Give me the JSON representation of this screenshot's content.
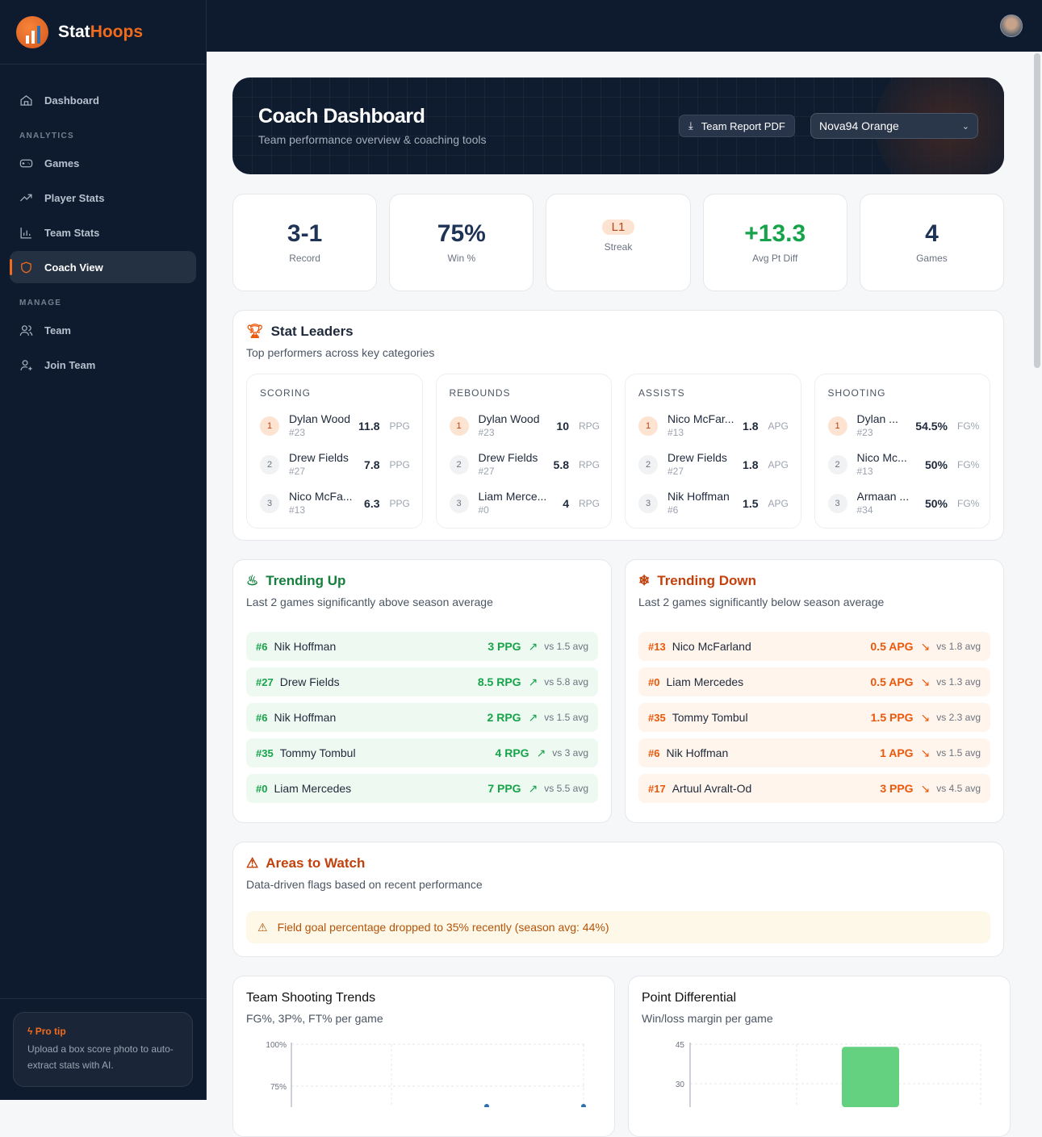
{
  "brand": {
    "name_a": "Stat",
    "name_b": "Hoops"
  },
  "sidebar": {
    "dashboard": "Dashboard",
    "analytics": "ANALYTICS",
    "items": [
      {
        "label": "Games",
        "icon": "gamepad-icon"
      },
      {
        "label": "Player Stats",
        "icon": "trending-up-icon"
      },
      {
        "label": "Team Stats",
        "icon": "bar-chart-icon"
      },
      {
        "label": "Coach View",
        "icon": "shield-icon"
      }
    ],
    "manage": "MANAGE",
    "manage_items": [
      {
        "label": "Team"
      },
      {
        "label": "Join Team"
      }
    ],
    "tip_title": "Pro tip",
    "tip_body": "Upload a box score photo to auto-extract stats with AI."
  },
  "hero": {
    "title": "Coach Dashboard",
    "subtitle": "Team performance overview & coaching tools",
    "pdf": "Team Report PDF",
    "team": "Nova94 Orange"
  },
  "kpis": [
    {
      "value": "3-1",
      "label": "Record"
    },
    {
      "value": "75%",
      "label": "Win %"
    },
    {
      "value": "L1",
      "label": "Streak"
    },
    {
      "value": "+13.3",
      "label": "Avg Pt Diff"
    },
    {
      "value": "4",
      "label": "Games"
    }
  ],
  "leaders": {
    "title": "Stat Leaders",
    "subtitle": "Top performers across key categories",
    "cats": [
      {
        "name": "SCORING",
        "unit": "PPG",
        "rows": [
          {
            "n": "Dylan Wood",
            "no": "#23",
            "v": "11.8"
          },
          {
            "n": "Drew Fields",
            "no": "#27",
            "v": "7.8"
          },
          {
            "n": "Nico McFa...",
            "no": "#13",
            "v": "6.3"
          }
        ]
      },
      {
        "name": "REBOUNDS",
        "unit": "RPG",
        "rows": [
          {
            "n": "Dylan Wood",
            "no": "#23",
            "v": "10"
          },
          {
            "n": "Drew Fields",
            "no": "#27",
            "v": "5.8"
          },
          {
            "n": "Liam Merce...",
            "no": "#0",
            "v": "4"
          }
        ]
      },
      {
        "name": "ASSISTS",
        "unit": "APG",
        "rows": [
          {
            "n": "Nico McFar...",
            "no": "#13",
            "v": "1.8"
          },
          {
            "n": "Drew Fields",
            "no": "#27",
            "v": "1.8"
          },
          {
            "n": "Nik Hoffman",
            "no": "#6",
            "v": "1.5"
          }
        ]
      },
      {
        "name": "SHOOTING",
        "unit": "FG%",
        "rows": [
          {
            "n": "Dylan ...",
            "no": "#23",
            "v": "54.5%"
          },
          {
            "n": "Nico Mc...",
            "no": "#13",
            "v": "50%"
          },
          {
            "n": "Armaan ...",
            "no": "#34",
            "v": "50%"
          }
        ]
      }
    ]
  },
  "trending_up": {
    "title": "Trending Up",
    "subtitle": "Last 2 games significantly above season average",
    "rows": [
      {
        "no": "#6",
        "n": "Nik Hoffman",
        "v": "3 PPG",
        "avg": "vs 1.5 avg"
      },
      {
        "no": "#27",
        "n": "Drew Fields",
        "v": "8.5 RPG",
        "avg": "vs 5.8 avg"
      },
      {
        "no": "#6",
        "n": "Nik Hoffman",
        "v": "2 RPG",
        "avg": "vs 1.5 avg"
      },
      {
        "no": "#35",
        "n": "Tommy Tombul",
        "v": "4 RPG",
        "avg": "vs 3 avg"
      },
      {
        "no": "#0",
        "n": "Liam Mercedes",
        "v": "7 PPG",
        "avg": "vs 5.5 avg"
      }
    ]
  },
  "trending_down": {
    "title": "Trending Down",
    "subtitle": "Last 2 games significantly below season average",
    "rows": [
      {
        "no": "#13",
        "n": "Nico McFarland",
        "v": "0.5 APG",
        "avg": "vs 1.8 avg"
      },
      {
        "no": "#0",
        "n": "Liam Mercedes",
        "v": "0.5 APG",
        "avg": "vs 1.3 avg"
      },
      {
        "no": "#35",
        "n": "Tommy Tombul",
        "v": "1.5 PPG",
        "avg": "vs 2.3 avg"
      },
      {
        "no": "#6",
        "n": "Nik Hoffman",
        "v": "1 APG",
        "avg": "vs 1.5 avg"
      },
      {
        "no": "#17",
        "n": "Artuul Avralt-Od",
        "v": "3 PPG",
        "avg": "vs 4.5 avg"
      }
    ]
  },
  "watch": {
    "title": "Areas to Watch",
    "subtitle": "Data-driven flags based on recent performance",
    "alert": "Field goal percentage dropped to 35% recently (season avg: 44%)"
  },
  "shooting": {
    "title": "Team Shooting Trends",
    "subtitle": "FG%, 3P%, FT% per game"
  },
  "pointdiff": {
    "title": "Point Differential",
    "subtitle": "Win/loss margin per game"
  },
  "chart_data": [
    {
      "type": "line",
      "title": "Team Shooting Trends",
      "y_ticks": [
        "100%",
        "75%"
      ],
      "grid": true
    },
    {
      "type": "bar",
      "title": "Point Differential",
      "y_ticks": [
        "45",
        "30"
      ],
      "grid": true,
      "values_visible": [
        {
          "game_index": 3,
          "value": 44
        }
      ]
    }
  ],
  "colors": {
    "accent": "#f26b1d",
    "up": "#16a34a",
    "down": "#ea580c",
    "sidebar": "#0e1b2e"
  }
}
